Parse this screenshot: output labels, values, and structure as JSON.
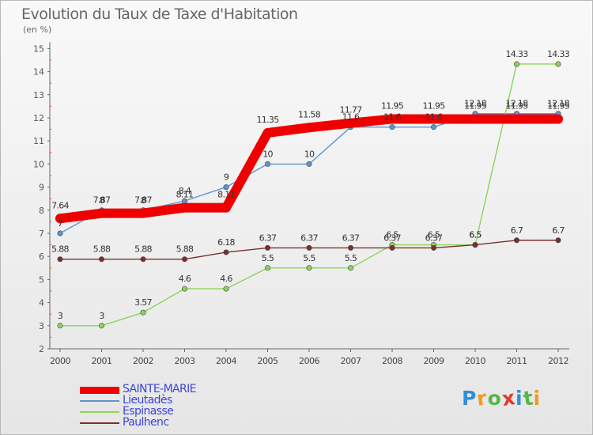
{
  "header": {
    "title": "Evolution du Taux de Taxe d'Habitation",
    "subtitle": "(en %)"
  },
  "logo": {
    "letters": [
      "P",
      "r",
      "o",
      "x",
      "i",
      "t",
      "i"
    ],
    "colors": [
      "#2f8fd8",
      "#f29a1c",
      "#56b847",
      "#e23a2e",
      "#2f8fd8",
      "#56b847",
      "#f29a1c"
    ]
  },
  "chart_data": {
    "type": "line",
    "title": "Evolution du Taux de Taxe d'Habitation",
    "subtitle": "(en %)",
    "xlabel": "",
    "ylabel": "",
    "x": [
      "2000",
      "2001",
      "2002",
      "2003",
      "2004",
      "2005",
      "2006",
      "2007",
      "2008",
      "2009",
      "2010",
      "2011",
      "2012"
    ],
    "ylim": [
      2,
      15
    ],
    "yticks": [
      2,
      3,
      4,
      5,
      6,
      7,
      8,
      9,
      10,
      11,
      12,
      13,
      14,
      15
    ],
    "grid": false,
    "legend_position": "bottom-left",
    "series": [
      {
        "name": "Lieutadès",
        "color": "#5b97cf",
        "values": [
          7,
          8,
          8,
          8.4,
          9,
          10,
          10,
          11.6,
          11.6,
          11.6,
          12.18,
          12.18,
          12.18
        ],
        "labels": [
          "7",
          "8",
          "8",
          "8.4",
          "9",
          "10",
          "10",
          "11.6",
          "11.6",
          "11.6",
          "12.18",
          "12.18",
          "12.18"
        ]
      },
      {
        "name": "Espinasse",
        "color": "#8ed35a",
        "values": [
          3,
          3,
          3.57,
          4.6,
          4.6,
          5.5,
          5.5,
          5.5,
          6.5,
          6.5,
          6.5,
          14.33,
          14.33
        ],
        "labels": [
          "3",
          "3",
          "3.57",
          "4.6",
          "4.6",
          "5.5",
          "5.5",
          "5.5",
          "6.5",
          "6.5",
          "6.5",
          "14.33",
          "14.33"
        ]
      },
      {
        "name": "Paulhenc",
        "color": "#7a3030",
        "values": [
          5.88,
          5.88,
          5.88,
          5.88,
          6.18,
          6.37,
          6.37,
          6.37,
          6.37,
          6.37,
          6.5,
          6.7,
          6.7
        ],
        "labels": [
          "5.88",
          "5.88",
          "5.88",
          "5.88",
          "6.18",
          "6.37",
          "6.37",
          "6.37",
          "6.37",
          "6.37",
          "6.5",
          "6.7",
          "6.7"
        ]
      },
      {
        "name": "SAINTE-MARIE",
        "color": "#ee0000",
        "highlight": true,
        "values": [
          7.64,
          7.87,
          7.87,
          8.11,
          8.11,
          11.35,
          11.58,
          11.77,
          11.95,
          11.95,
          11.95,
          11.95,
          11.95
        ],
        "labels": [
          "7.64",
          "7.87",
          "7.87",
          "8.11",
          "8.11",
          "11.35",
          "11.58",
          "11.77",
          "11.95",
          "11.95",
          "11.95",
          "11.95",
          "11.95"
        ]
      }
    ],
    "legend": [
      "SAINTE-MARIE",
      "Lieutadès",
      "Espinasse",
      "Paulhenc"
    ]
  }
}
